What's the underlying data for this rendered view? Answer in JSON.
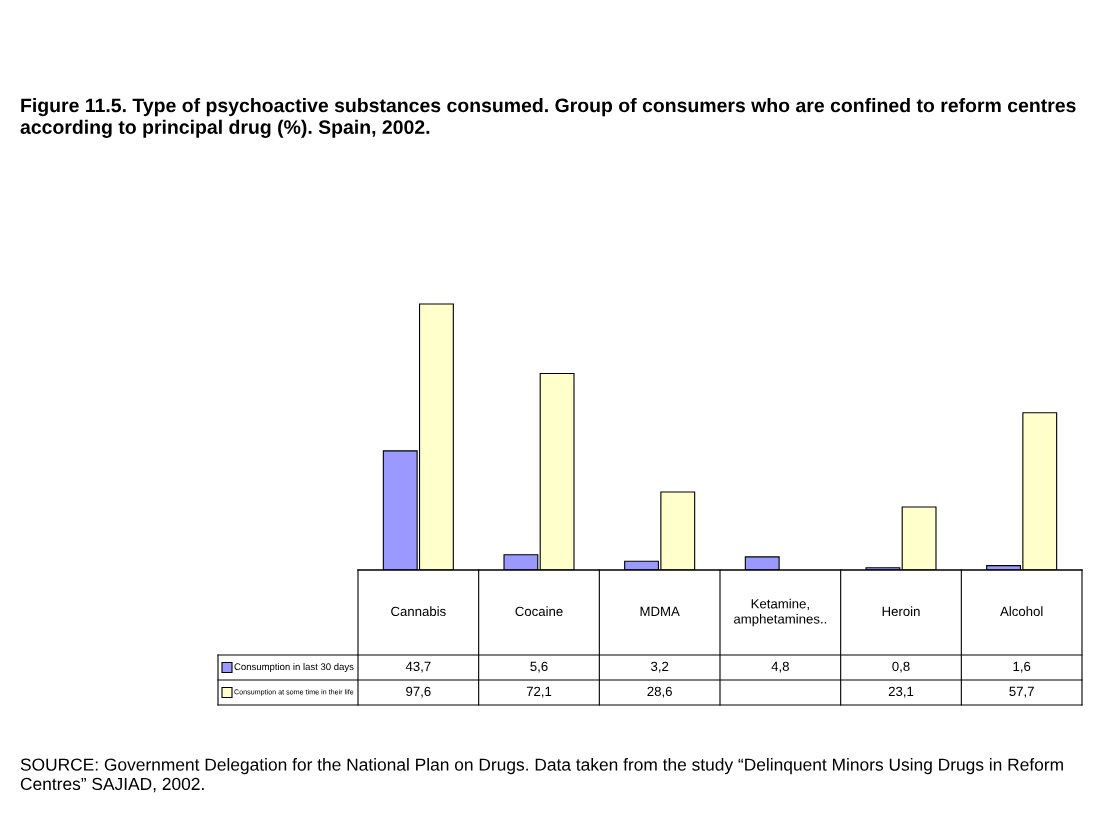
{
  "chart_data": {
    "type": "bar",
    "title": "Figure 11.5. Type of psychoactive substances consumed. Group of consumers who are confined to reform centres according to principal drug (%). Spain, 2002.",
    "categories": [
      "Cannabis",
      "Cocaine",
      "MDMA",
      "Ketamine, amphetamines..",
      "Heroin",
      "Alcohol"
    ],
    "series": [
      {
        "name": "Consumption in last 30 days",
        "color": "#9999ff",
        "values": [
          43.7,
          5.6,
          3.2,
          4.8,
          0.8,
          1.6
        ],
        "value_labels": [
          "43,7",
          "5,6",
          "3,2",
          "4,8",
          "0,8",
          "1,6"
        ]
      },
      {
        "name": "Consumption at some time in their life",
        "color": "#ffffcc",
        "values": [
          97.6,
          72.1,
          28.6,
          null,
          23.1,
          57.7
        ],
        "value_labels": [
          "97,6",
          "72,1",
          "28,6",
          null,
          "23,1",
          "57,7"
        ]
      }
    ],
    "data_labels": true,
    "legend": "bottom",
    "annotations": [
      "SOURCE: Government Delegation for the National Plan on Drugs. Data taken from the study “Delinquent Minors Using Drugs in Reform Centres” SAJIAD, 2002."
    ]
  }
}
